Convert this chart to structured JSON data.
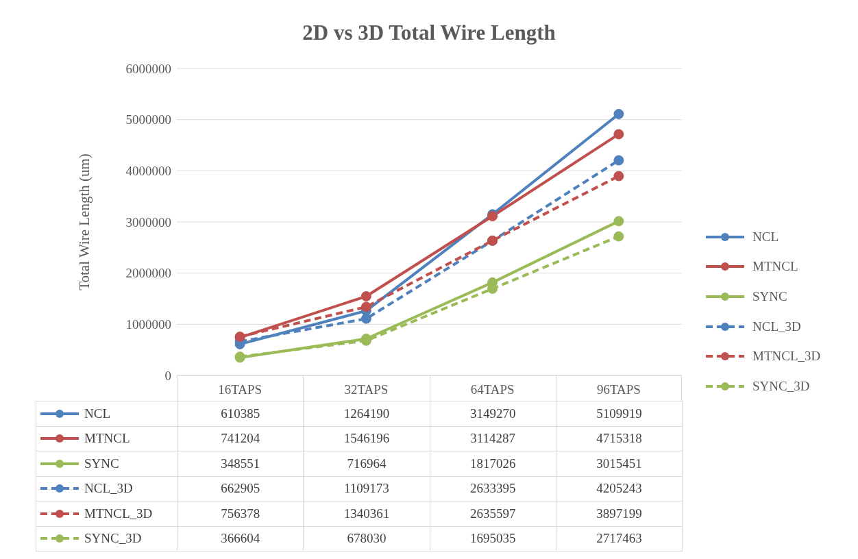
{
  "chart_data": {
    "type": "line",
    "title": "2D vs 3D Total Wire Length",
    "ylabel": "Total Wire Length (um)",
    "categories": [
      "16TAPS",
      "32TAPS",
      "64TAPS",
      "96TAPS"
    ],
    "ylim": [
      0,
      6000000
    ],
    "yticks": [
      0,
      1000000,
      2000000,
      3000000,
      4000000,
      5000000,
      6000000
    ],
    "grid": "y",
    "legend": "right",
    "marker": "circle",
    "data_labels": true,
    "series": [
      {
        "name": "NCL",
        "color": "#4f81bd",
        "line_style": "solid",
        "values": [
          610385,
          1264190,
          3149270,
          5109919
        ]
      },
      {
        "name": "MTNCL",
        "color": "#c0504d",
        "line_style": "solid",
        "values": [
          741204,
          1546196,
          3114287,
          4715318
        ]
      },
      {
        "name": "SYNC",
        "color": "#9bbb59",
        "line_style": "solid",
        "values": [
          348551,
          716964,
          1817026,
          3015451
        ]
      },
      {
        "name": "NCL_3D",
        "color": "#4f81bd",
        "line_style": "dashed",
        "values": [
          662905,
          1109173,
          2633395,
          4205243
        ]
      },
      {
        "name": "MTNCL_3D",
        "color": "#c0504d",
        "line_style": "dashed",
        "values": [
          756378,
          1340361,
          2635597,
          3897199
        ]
      },
      {
        "name": "SYNC_3D",
        "color": "#9bbb59",
        "line_style": "dashed",
        "values": [
          366604,
          678030,
          1695035,
          2717463
        ]
      }
    ]
  }
}
